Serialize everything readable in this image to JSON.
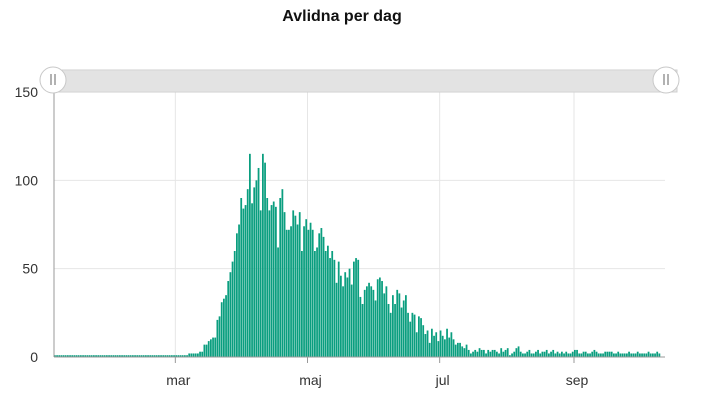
{
  "chart_data": {
    "type": "bar",
    "title": "Avlidna per dag",
    "color": "#0a9e7f",
    "scrollbar": {
      "range_start": 0,
      "range_end": 1
    },
    "y_ticks": [
      0,
      50,
      100,
      150
    ],
    "ylim": [
      0,
      150
    ],
    "x_ticks": [
      {
        "label": "mar",
        "date": "2020-03-01"
      },
      {
        "label": "maj",
        "date": "2020-05-01"
      },
      {
        "label": "jul",
        "date": "2020-07-01"
      },
      {
        "label": "sep",
        "date": "2020-09-01"
      }
    ],
    "x_range": [
      "2020-01-05",
      "2020-10-13"
    ],
    "grid": true,
    "start_date": "2020-01-05",
    "values": [
      1,
      1,
      1,
      1,
      1,
      1,
      1,
      1,
      1,
      1,
      1,
      1,
      1,
      1,
      1,
      1,
      1,
      1,
      1,
      1,
      1,
      1,
      1,
      1,
      1,
      1,
      1,
      1,
      1,
      1,
      1,
      1,
      1,
      1,
      1,
      1,
      1,
      1,
      1,
      1,
      1,
      1,
      1,
      1,
      1,
      1,
      1,
      1,
      1,
      1,
      1,
      1,
      1,
      1,
      1,
      1,
      1,
      1,
      1,
      1,
      1,
      1,
      2,
      2,
      2,
      2,
      2,
      3,
      3,
      7,
      7,
      9,
      10,
      11,
      11,
      21,
      23,
      31,
      33,
      35,
      43,
      48,
      54,
      60,
      70,
      75,
      90,
      84,
      86,
      95,
      115,
      87,
      96,
      100,
      107,
      83,
      115,
      110,
      90,
      83,
      86,
      88,
      85,
      62,
      90,
      95,
      82,
      72,
      72,
      74,
      83,
      80,
      75,
      82,
      60,
      74,
      78,
      72,
      76,
      72,
      60,
      62,
      70,
      73,
      68,
      60,
      63,
      56,
      60,
      55,
      42,
      54,
      46,
      40,
      48,
      45,
      50,
      41,
      54,
      56,
      55,
      34,
      30,
      38,
      40,
      42,
      40,
      38,
      32,
      44,
      45,
      43,
      36,
      40,
      30,
      25,
      35,
      30,
      38,
      36,
      28,
      32,
      35,
      25,
      20,
      25,
      24,
      14,
      23,
      22,
      18,
      13,
      15,
      8,
      16,
      12,
      14,
      9,
      15,
      12,
      10,
      16,
      11,
      14,
      10,
      7,
      8,
      8,
      6,
      5,
      7,
      4,
      2,
      3,
      4,
      3,
      5,
      4,
      4,
      2,
      4,
      3,
      4,
      4,
      3,
      2,
      5,
      3,
      4,
      5,
      1,
      2,
      3,
      5,
      6,
      3,
      2,
      2,
      3,
      4,
      2,
      2,
      3,
      4,
      2,
      3,
      3,
      4,
      2,
      3,
      4,
      2,
      3,
      2,
      3,
      2,
      3,
      2,
      2,
      3,
      4,
      4,
      2,
      2,
      3,
      3,
      2,
      2,
      3,
      4,
      3,
      2,
      2,
      2,
      3,
      3,
      3,
      3,
      2,
      2,
      3,
      2,
      2,
      2,
      2,
      3,
      2,
      2,
      2,
      3,
      2,
      2,
      2,
      2,
      3,
      2,
      2,
      2,
      3,
      2
    ]
  }
}
